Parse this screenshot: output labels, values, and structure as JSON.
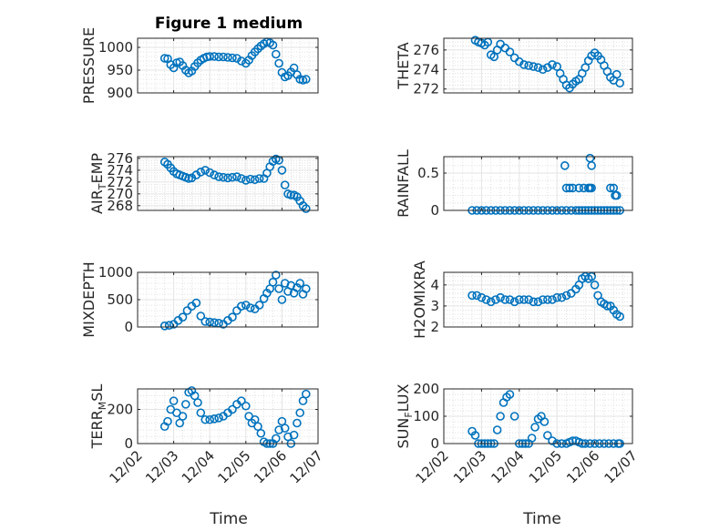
{
  "figure_title": "Figure 1 medium",
  "xlabel": "Time",
  "x_tick_labels": [
    "12/02",
    "12/03",
    "12/04",
    "12/05",
    "12/06",
    "12/07"
  ],
  "colors": {
    "marker": "#0072BD",
    "grid": "#d9d9d9",
    "axis": "#262626"
  },
  "chart_data": [
    {
      "type": "scatter",
      "ylabel": "PRESSURE",
      "ylim": [
        900,
        1020
      ],
      "yticks": [
        900,
        950,
        1000
      ],
      "ytick_labels": [
        "900",
        "950",
        "1000"
      ],
      "xlim": [
        "12/02",
        "12/07"
      ],
      "grid": true,
      "x": [
        "12/02 18:00",
        "12/02 20:00",
        "12/02 22:00",
        "12/03 00:00",
        "12/03 02:00",
        "12/03 04:00",
        "12/03 06:00",
        "12/03 08:00",
        "12/03 10:00",
        "12/03 12:00",
        "12/03 14:00",
        "12/03 16:00",
        "12/03 18:00",
        "12/03 20:00",
        "12/03 22:00",
        "12/04 00:00",
        "12/04 03:00",
        "12/04 06:00",
        "12/04 09:00",
        "12/04 12:00",
        "12/04 15:00",
        "12/04 18:00",
        "12/04 21:00",
        "12/05 00:00",
        "12/05 02:00",
        "12/05 04:00",
        "12/05 06:00",
        "12/05 08:00",
        "12/05 10:00",
        "12/05 12:00",
        "12/05 14:00",
        "12/05 16:00",
        "12/05 18:00",
        "12/05 20:00",
        "12/05 22:00",
        "12/06 00:00",
        "12/06 02:00",
        "12/06 04:00",
        "12/06 06:00",
        "12/06 08:00",
        "12/06 10:00",
        "12/06 12:00",
        "12/06 14:00",
        "12/06 16:00"
      ],
      "y": [
        976,
        975,
        962,
        955,
        966,
        968,
        960,
        950,
        944,
        948,
        958,
        966,
        972,
        976,
        979,
        980,
        980,
        979,
        979,
        978,
        977,
        976,
        970,
        965,
        972,
        982,
        990,
        997,
        1003,
        1008,
        1012,
        1010,
        1005,
        985,
        965,
        945,
        935,
        938,
        946,
        955,
        940,
        930,
        928,
        930
      ]
    },
    {
      "type": "scatter",
      "ylabel": "THETA",
      "ylim": [
        271.6,
        277.2
      ],
      "yticks": [
        272,
        274,
        276
      ],
      "ytick_labels": [
        "272",
        "274",
        "276"
      ],
      "xlim": [
        "12/02",
        "12/07"
      ],
      "grid": true,
      "x": [
        "12/02 20:00",
        "12/02 22:00",
        "12/03 00:00",
        "12/03 02:00",
        "12/03 04:00",
        "12/03 06:00",
        "12/03 08:00",
        "12/03 10:00",
        "12/03 12:00",
        "12/03 15:00",
        "12/03 18:00",
        "12/03 21:00",
        "12/04 00:00",
        "12/04 03:00",
        "12/04 06:00",
        "12/04 09:00",
        "12/04 12:00",
        "12/04 15:00",
        "12/04 18:00",
        "12/04 21:00",
        "12/05 00:00",
        "12/05 02:00",
        "12/05 04:00",
        "12/05 06:00",
        "12/05 08:00",
        "12/05 10:00",
        "12/05 12:00",
        "12/05 14:00",
        "12/05 16:00",
        "12/05 18:00",
        "12/05 20:00",
        "12/05 22:00",
        "12/06 00:00",
        "12/06 02:00",
        "12/06 04:00",
        "12/06 06:00",
        "12/06 08:00",
        "12/06 10:00",
        "12/06 12:00",
        "12/06 14:00",
        "12/06 16:00"
      ],
      "y": [
        277.0,
        276.8,
        276.7,
        276.5,
        276.8,
        275.5,
        275.3,
        276.0,
        276.6,
        276.2,
        275.8,
        275.2,
        274.8,
        274.5,
        274.4,
        274.3,
        274.2,
        274.0,
        274.2,
        274.5,
        274.3,
        273.6,
        273.0,
        272.4,
        272.1,
        272.5,
        272.8,
        273.0,
        273.6,
        274.2,
        274.9,
        275.4,
        275.7,
        275.4,
        275.0,
        274.4,
        273.8,
        273.2,
        272.9,
        273.5,
        272.6
      ]
    },
    {
      "type": "scatter",
      "ylabel": "AIR_TEMP",
      "ylim": [
        267.2,
        276.3
      ],
      "yticks": [
        268,
        270,
        272,
        274,
        276
      ],
      "ytick_labels": [
        "268",
        "270",
        "272",
        "274",
        "276"
      ],
      "xlim": [
        "12/02",
        "12/07"
      ],
      "grid": true,
      "x": [
        "12/02 18:00",
        "12/02 20:00",
        "12/02 22:00",
        "12/03 00:00",
        "12/03 02:00",
        "12/03 04:00",
        "12/03 06:00",
        "12/03 08:00",
        "12/03 10:00",
        "12/03 12:00",
        "12/03 15:00",
        "12/03 18:00",
        "12/03 21:00",
        "12/04 00:00",
        "12/04 03:00",
        "12/04 06:00",
        "12/04 09:00",
        "12/04 12:00",
        "12/04 15:00",
        "12/04 18:00",
        "12/04 21:00",
        "12/05 00:00",
        "12/05 03:00",
        "12/05 06:00",
        "12/05 09:00",
        "12/05 12:00",
        "12/05 14:00",
        "12/05 16:00",
        "12/05 18:00",
        "12/05 20:00",
        "12/05 22:00",
        "12/06 00:00",
        "12/06 02:00",
        "12/06 04:00",
        "12/06 06:00",
        "12/06 08:00",
        "12/06 10:00",
        "12/06 12:00",
        "12/06 14:00",
        "12/06 16:00"
      ],
      "y": [
        275.4,
        275.0,
        274.4,
        273.8,
        273.4,
        273.2,
        273.0,
        272.8,
        272.6,
        272.7,
        273.2,
        273.7,
        274.0,
        273.6,
        273.2,
        272.9,
        272.8,
        272.7,
        272.8,
        272.9,
        272.6,
        272.3,
        272.5,
        272.4,
        272.6,
        272.6,
        273.5,
        274.6,
        275.5,
        275.9,
        275.7,
        274.0,
        271.5,
        270.0,
        269.8,
        269.8,
        269.5,
        268.8,
        268.0,
        267.5
      ]
    },
    {
      "type": "scatter",
      "ylabel": "RAINFALL",
      "ylim": [
        0,
        0.72
      ],
      "yticks": [
        0,
        0.5
      ],
      "ytick_labels": [
        "0",
        "0.5"
      ],
      "xlim": [
        "12/02",
        "12/07"
      ],
      "grid": true,
      "x": [
        "12/02 18:00",
        "12/02 21:00",
        "12/03 00:00",
        "12/03 03:00",
        "12/03 06:00",
        "12/03 09:00",
        "12/03 12:00",
        "12/03 15:00",
        "12/03 18:00",
        "12/03 21:00",
        "12/04 00:00",
        "12/04 03:00",
        "12/04 06:00",
        "12/04 09:00",
        "12/04 12:00",
        "12/04 15:00",
        "12/04 18:00",
        "12/04 21:00",
        "12/05 00:00",
        "12/05 03:00",
        "12/05 06:00",
        "12/05 09:00",
        "12/05 12:00",
        "12/05 14:00",
        "12/05 16:00",
        "12/05 18:00",
        "12/05 20:00",
        "12/05 22:00",
        "12/06 00:00",
        "12/06 02:00",
        "12/06 04:00",
        "12/06 06:00",
        "12/06 08:00",
        "12/06 10:00",
        "12/06 12:00",
        "12/06 14:00",
        "12/06 16:00",
        "12/05 06:00",
        "12/05 08:00",
        "12/05 10:00",
        "12/05 14:00",
        "12/05 17:00",
        "12/05 20:00",
        "12/05 21:00",
        "12/05 22:00",
        "12/06 10:00",
        "12/06 12:00",
        "12/06 13:00",
        "12/06 14:00",
        "12/05 05:00",
        "12/05 21:00",
        "12/05 22:00"
      ],
      "y": [
        0,
        0,
        0,
        0,
        0,
        0,
        0,
        0,
        0,
        0,
        0,
        0,
        0,
        0,
        0,
        0,
        0,
        0,
        0,
        0,
        0,
        0,
        0,
        0,
        0,
        0,
        0,
        0,
        0,
        0,
        0,
        0,
        0,
        0,
        0,
        0,
        0,
        0.3,
        0.3,
        0.3,
        0.3,
        0.3,
        0.3,
        0.3,
        0.3,
        0.3,
        0.3,
        0.2,
        0.2,
        0.6,
        0.7,
        0.6
      ]
    },
    {
      "type": "scatter",
      "ylabel": "MIXDEPTH",
      "ylim": [
        0,
        1000
      ],
      "yticks": [
        0,
        500,
        1000
      ],
      "ytick_labels": [
        "0",
        "500",
        "1000"
      ],
      "xlim": [
        "12/02",
        "12/07"
      ],
      "grid": true,
      "x": [
        "12/02 18:00",
        "12/02 21:00",
        "12/03 00:00",
        "12/03 03:00",
        "12/03 06:00",
        "12/03 09:00",
        "12/03 12:00",
        "12/03 15:00",
        "12/03 18:00",
        "12/03 21:00",
        "12/04 00:00",
        "12/04 03:00",
        "12/04 06:00",
        "12/04 09:00",
        "12/04 12:00",
        "12/04 15:00",
        "12/04 18:00",
        "12/04 21:00",
        "12/05 00:00",
        "12/05 03:00",
        "12/05 06:00",
        "12/05 09:00",
        "12/05 12:00",
        "12/05 14:00",
        "12/05 16:00",
        "12/05 18:00",
        "12/05 20:00",
        "12/05 22:00",
        "12/06 00:00",
        "12/06 02:00",
        "12/06 04:00",
        "12/06 06:00",
        "12/06 08:00",
        "12/06 10:00",
        "12/06 12:00",
        "12/06 14:00",
        "12/06 16:00"
      ],
      "y": [
        20,
        30,
        50,
        120,
        180,
        300,
        380,
        440,
        200,
        100,
        90,
        80,
        70,
        50,
        120,
        180,
        300,
        380,
        400,
        350,
        330,
        400,
        520,
        620,
        700,
        820,
        950,
        700,
        500,
        800,
        650,
        760,
        620,
        720,
        800,
        600,
        700
      ]
    },
    {
      "type": "scatter",
      "ylabel": "H2OMIXRA",
      "ylim": [
        2,
        4.6
      ],
      "yticks": [
        2,
        3,
        4
      ],
      "ytick_labels": [
        "2",
        "3",
        "4"
      ],
      "xlim": [
        "12/02",
        "12/07"
      ],
      "grid": true,
      "x": [
        "12/02 18:00",
        "12/02 21:00",
        "12/03 00:00",
        "12/03 03:00",
        "12/03 06:00",
        "12/03 09:00",
        "12/03 12:00",
        "12/03 15:00",
        "12/03 18:00",
        "12/03 21:00",
        "12/04 00:00",
        "12/04 03:00",
        "12/04 06:00",
        "12/04 09:00",
        "12/04 12:00",
        "12/04 15:00",
        "12/04 18:00",
        "12/04 21:00",
        "12/05 00:00",
        "12/05 03:00",
        "12/05 06:00",
        "12/05 09:00",
        "12/05 12:00",
        "12/05 14:00",
        "12/05 16:00",
        "12/05 18:00",
        "12/05 20:00",
        "12/05 22:00",
        "12/06 00:00",
        "12/06 02:00",
        "12/06 04:00",
        "12/06 06:00",
        "12/06 08:00",
        "12/06 10:00",
        "12/06 12:00",
        "12/06 14:00",
        "12/06 16:00"
      ],
      "y": [
        3.5,
        3.5,
        3.4,
        3.3,
        3.2,
        3.3,
        3.4,
        3.3,
        3.3,
        3.2,
        3.3,
        3.3,
        3.3,
        3.2,
        3.2,
        3.3,
        3.3,
        3.3,
        3.4,
        3.4,
        3.5,
        3.6,
        3.8,
        4.0,
        4.3,
        4.4,
        4.3,
        4.4,
        4.0,
        3.5,
        3.2,
        3.1,
        3.0,
        3.0,
        2.8,
        2.6,
        2.5
      ]
    },
    {
      "type": "scatter",
      "ylabel": "TERR_MSL",
      "ylim": [
        0,
        320
      ],
      "yticks": [
        0,
        200
      ],
      "ytick_labels": [
        "0",
        "200"
      ],
      "xlim": [
        "12/02",
        "12/07"
      ],
      "grid": true,
      "x": [
        "12/02 18:00",
        "12/02 20:00",
        "12/02 22:00",
        "12/03 00:00",
        "12/03 02:00",
        "12/03 04:00",
        "12/03 06:00",
        "12/03 08:00",
        "12/03 10:00",
        "12/03 12:00",
        "12/03 14:00",
        "12/03 16:00",
        "12/03 18:00",
        "12/03 21:00",
        "12/04 00:00",
        "12/04 03:00",
        "12/04 06:00",
        "12/04 09:00",
        "12/04 12:00",
        "12/04 15:00",
        "12/04 18:00",
        "12/04 21:00",
        "12/05 00:00",
        "12/05 02:00",
        "12/05 04:00",
        "12/05 06:00",
        "12/05 08:00",
        "12/05 10:00",
        "12/05 12:00",
        "12/05 14:00",
        "12/05 16:00",
        "12/05 18:00",
        "12/05 20:00",
        "12/05 22:00",
        "12/06 00:00",
        "12/06 02:00",
        "12/06 04:00",
        "12/06 06:00",
        "12/06 08:00",
        "12/06 10:00",
        "12/06 12:00",
        "12/06 14:00",
        "12/06 16:00"
      ],
      "y": [
        100,
        130,
        200,
        250,
        180,
        120,
        160,
        230,
        300,
        310,
        280,
        240,
        180,
        140,
        140,
        145,
        150,
        160,
        180,
        200,
        230,
        250,
        220,
        160,
        120,
        140,
        100,
        60,
        10,
        0,
        0,
        0,
        30,
        80,
        130,
        90,
        40,
        0,
        50,
        120,
        180,
        250,
        290
      ]
    },
    {
      "type": "scatter",
      "ylabel": "SUN_FLUX",
      "ylim": [
        0,
        200
      ],
      "yticks": [
        0,
        100,
        200
      ],
      "ytick_labels": [
        "0",
        "100",
        "200"
      ],
      "xlim": [
        "12/02",
        "12/07"
      ],
      "grid": true,
      "x": [
        "12/02 18:00",
        "12/02 20:00",
        "12/02 22:00",
        "12/03 00:00",
        "12/03 02:00",
        "12/03 04:00",
        "12/03 06:00",
        "12/03 08:00",
        "12/03 10:00",
        "12/03 12:00",
        "12/03 14:00",
        "12/03 16:00",
        "12/03 18:00",
        "12/03 21:00",
        "12/04 00:00",
        "12/04 02:00",
        "12/04 04:00",
        "12/04 06:00",
        "12/04 08:00",
        "12/04 10:00",
        "12/04 12:00",
        "12/04 14:00",
        "12/04 16:00",
        "12/04 18:00",
        "12/04 21:00",
        "12/05 00:00",
        "12/05 03:00",
        "12/05 06:00",
        "12/05 08:00",
        "12/05 10:00",
        "12/05 12:00",
        "12/05 14:00",
        "12/05 16:00",
        "12/05 18:00",
        "12/05 21:00",
        "12/06 00:00",
        "12/06 03:00",
        "12/06 06:00",
        "12/06 09:00",
        "12/06 12:00",
        "12/06 15:00",
        "12/06 16:00"
      ],
      "y": [
        45,
        30,
        0,
        0,
        0,
        0,
        0,
        0,
        50,
        100,
        150,
        170,
        180,
        100,
        0,
        0,
        0,
        0,
        20,
        60,
        90,
        100,
        80,
        30,
        10,
        0,
        0,
        0,
        5,
        10,
        10,
        5,
        0,
        0,
        0,
        0,
        0,
        0,
        0,
        0,
        0,
        0
      ]
    }
  ]
}
